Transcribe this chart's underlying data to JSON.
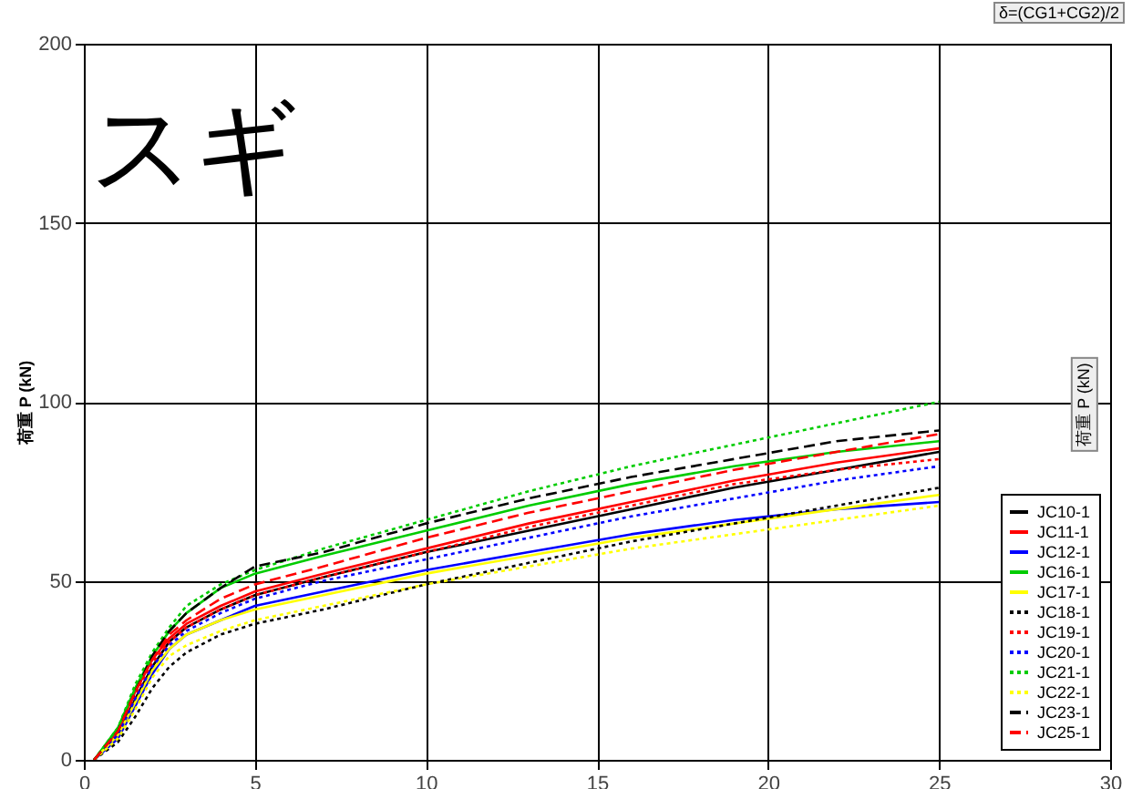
{
  "chart_data": {
    "type": "line",
    "title": "スギ",
    "ylabel": "荷重 P (kN)",
    "annotations": [
      "δ=(CG1+CG2)/2",
      "荷重 P (kN)"
    ],
    "x": [
      0.3,
      1,
      1.5,
      2,
      2.5,
      3,
      4,
      5,
      7,
      10,
      13,
      16,
      19,
      22,
      25
    ],
    "xlim": [
      0,
      30
    ],
    "xticks": [
      0,
      5,
      10,
      15,
      20,
      25,
      30
    ],
    "ylim": [
      0,
      200
    ],
    "yticks": [
      0,
      50,
      100,
      150,
      200
    ],
    "grid": true,
    "legend": "bottom right",
    "marker": "none",
    "series": [
      {
        "name": "JC10-1",
        "color": "#000000",
        "line_style": "solid",
        "values": [
          0,
          7,
          17,
          26,
          33,
          37,
          42,
          46,
          51,
          58,
          64,
          70,
          76,
          81,
          86
        ]
      },
      {
        "name": "JC11-1",
        "color": "#ff0000",
        "line_style": "solid",
        "values": [
          0,
          8,
          19,
          28,
          34,
          38,
          43,
          47,
          52,
          59,
          66,
          72,
          78,
          83,
          87
        ]
      },
      {
        "name": "JC12-1",
        "color": "#0000ff",
        "line_style": "solid",
        "values": [
          0,
          6,
          15,
          24,
          31,
          35,
          39,
          43,
          47,
          53,
          58,
          63,
          67,
          70,
          72
        ]
      },
      {
        "name": "JC16-1",
        "color": "#00cc00",
        "line_style": "solid",
        "values": [
          0,
          9,
          20,
          29,
          36,
          41,
          48,
          52,
          57,
          64,
          71,
          77,
          82,
          86,
          89
        ]
      },
      {
        "name": "JC17-1",
        "color": "#ffff00",
        "line_style": "solid",
        "values": [
          0,
          7,
          16,
          25,
          31,
          35,
          39,
          42,
          46,
          52,
          57,
          62,
          66,
          70,
          74
        ]
      },
      {
        "name": "JC18-1",
        "color": "#000000",
        "line_style": "dotted",
        "values": [
          0,
          5,
          12,
          20,
          26,
          30,
          35,
          38,
          42,
          49,
          55,
          61,
          66,
          71,
          76
        ]
      },
      {
        "name": "JC19-1",
        "color": "#ff0000",
        "line_style": "dotted",
        "values": [
          0,
          8,
          18,
          27,
          33,
          37,
          42,
          46,
          51,
          58,
          65,
          71,
          77,
          81,
          84
        ]
      },
      {
        "name": "JC20-1",
        "color": "#0000ff",
        "line_style": "dotted",
        "values": [
          0,
          7,
          17,
          26,
          32,
          36,
          41,
          45,
          50,
          56,
          62,
          68,
          73,
          78,
          82
        ]
      },
      {
        "name": "JC21-1",
        "color": "#00cc00",
        "line_style": "dotted",
        "values": [
          0,
          9,
          21,
          30,
          37,
          43,
          49,
          53,
          59,
          67,
          75,
          82,
          88,
          94,
          100
        ]
      },
      {
        "name": "JC22-1",
        "color": "#ffff00",
        "line_style": "dotted",
        "values": [
          0,
          6,
          14,
          23,
          29,
          32,
          36,
          39,
          43,
          49,
          54,
          59,
          63,
          67,
          71
        ]
      },
      {
        "name": "JC23-1",
        "color": "#000000",
        "line_style": "dashed",
        "values": [
          0,
          8,
          19,
          29,
          36,
          41,
          48,
          54,
          58,
          66,
          73,
          79,
          84,
          89,
          92
        ]
      },
      {
        "name": "JC25-1",
        "color": "#ff0000",
        "line_style": "dashed",
        "values": [
          0,
          8,
          19,
          28,
          35,
          39,
          45,
          49,
          54,
          62,
          69,
          75,
          81,
          86,
          91
        ]
      }
    ]
  }
}
